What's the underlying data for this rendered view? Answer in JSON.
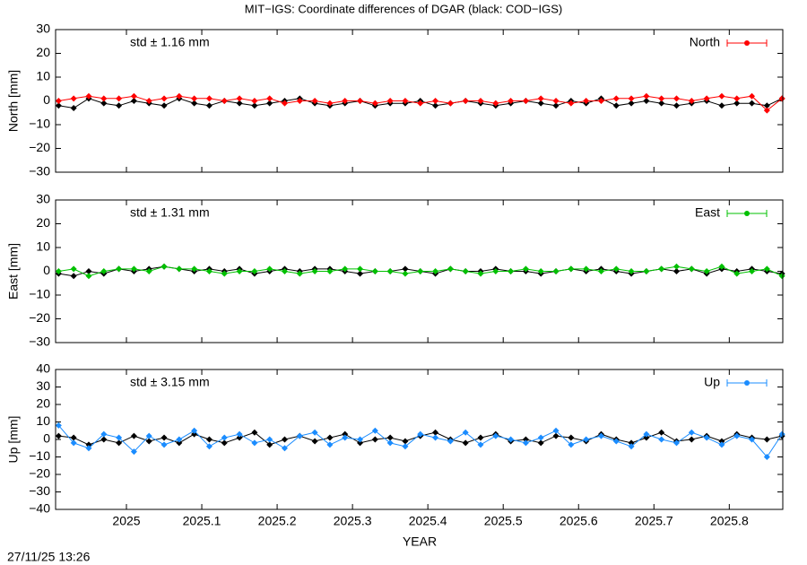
{
  "chart_data": [
    {
      "type": "line",
      "title": "MIT−IGS: Coordinate differences of DGAR (black: COD−IGS)",
      "ylabel": "North [mm]",
      "annotation": "std ± 1.16 mm",
      "legend": "top-right",
      "x": [
        2024.91,
        2024.93,
        2024.95,
        2024.97,
        2024.99,
        2025.01,
        2025.03,
        2025.05,
        2025.07,
        2025.09,
        2025.11,
        2025.13,
        2025.15,
        2025.17,
        2025.19,
        2025.21,
        2025.23,
        2025.25,
        2025.27,
        2025.29,
        2025.31,
        2025.33,
        2025.35,
        2025.37,
        2025.39,
        2025.41,
        2025.43,
        2025.45,
        2025.47,
        2025.49,
        2025.51,
        2025.53,
        2025.55,
        2025.57,
        2025.59,
        2025.61,
        2025.63,
        2025.65,
        2025.67,
        2025.69,
        2025.71,
        2025.73,
        2025.75,
        2025.77,
        2025.79,
        2025.81,
        2025.83,
        2025.85,
        2025.87
      ],
      "xlim": [
        2024.906,
        2025.871
      ],
      "xticks": [
        2025,
        2025.1,
        2025.2,
        2025.3,
        2025.4,
        2025.5,
        2025.6,
        2025.7,
        2025.8
      ],
      "ylim": [
        -30,
        30
      ],
      "yticks": [
        {
          "value": -30,
          "label": "−30"
        },
        {
          "value": -20,
          "label": "−20"
        },
        {
          "value": -10,
          "label": "−10"
        },
        0,
        10,
        20,
        30
      ],
      "series": [
        {
          "color": "#000000",
          "values": [
            -2,
            -3,
            1,
            -1,
            -2,
            0,
            -1,
            -2,
            1,
            -1,
            -2,
            0,
            -1,
            -2,
            -1,
            0,
            1,
            -1,
            -2,
            -1,
            0,
            -2,
            -1,
            -1,
            0,
            -2,
            -1,
            0,
            -1,
            -2,
            -1,
            0,
            -1,
            -2,
            0,
            -1,
            1,
            -2,
            -1,
            0,
            -1,
            -2,
            -1,
            0,
            -2,
            -1,
            -1,
            -2,
            1
          ]
        },
        {
          "name": "North",
          "color": "#ff0000",
          "values": [
            0,
            1,
            2,
            1,
            1,
            2,
            0,
            1,
            2,
            1,
            1,
            0,
            1,
            0,
            1,
            -1,
            0,
            0,
            -1,
            0,
            0,
            -1,
            0,
            0,
            -1,
            0,
            -1,
            0,
            0,
            -1,
            0,
            0,
            1,
            0,
            -1,
            0,
            0,
            1,
            1,
            2,
            1,
            1,
            0,
            1,
            2,
            1,
            2,
            -4,
            1
          ]
        }
      ]
    },
    {
      "type": "line",
      "ylabel": "East [mm]",
      "annotation": "std ± 1.31 mm",
      "legend": "top-right",
      "x": [
        2024.91,
        2024.93,
        2024.95,
        2024.97,
        2024.99,
        2025.01,
        2025.03,
        2025.05,
        2025.07,
        2025.09,
        2025.11,
        2025.13,
        2025.15,
        2025.17,
        2025.19,
        2025.21,
        2025.23,
        2025.25,
        2025.27,
        2025.29,
        2025.31,
        2025.33,
        2025.35,
        2025.37,
        2025.39,
        2025.41,
        2025.43,
        2025.45,
        2025.47,
        2025.49,
        2025.51,
        2025.53,
        2025.55,
        2025.57,
        2025.59,
        2025.61,
        2025.63,
        2025.65,
        2025.67,
        2025.69,
        2025.71,
        2025.73,
        2025.75,
        2025.77,
        2025.79,
        2025.81,
        2025.83,
        2025.85,
        2025.87
      ],
      "xlim": [
        2024.906,
        2025.871
      ],
      "xticks": [
        2025,
        2025.1,
        2025.2,
        2025.3,
        2025.4,
        2025.5,
        2025.6,
        2025.7,
        2025.8
      ],
      "ylim": [
        -30,
        30
      ],
      "yticks": [
        {
          "value": -30,
          "label": "−30"
        },
        {
          "value": -20,
          "label": "−20"
        },
        {
          "value": -10,
          "label": "−10"
        },
        0,
        10,
        20,
        30
      ],
      "series": [
        {
          "color": "#000000",
          "values": [
            -1,
            -2,
            0,
            -1,
            1,
            0,
            1,
            2,
            1,
            0,
            1,
            0,
            1,
            -1,
            0,
            1,
            0,
            1,
            1,
            0,
            -1,
            0,
            0,
            1,
            0,
            -1,
            1,
            0,
            0,
            1,
            0,
            0,
            -1,
            0,
            1,
            0,
            1,
            0,
            -1,
            0,
            1,
            0,
            1,
            -1,
            1,
            0,
            1,
            0,
            -1
          ]
        },
        {
          "name": "East",
          "color": "#00c000",
          "values": [
            0,
            1,
            -2,
            0,
            1,
            1,
            0,
            2,
            1,
            1,
            0,
            -1,
            0,
            0,
            1,
            0,
            -1,
            0,
            0,
            1,
            1,
            0,
            0,
            -1,
            0,
            0,
            1,
            0,
            -1,
            0,
            0,
            1,
            0,
            0,
            1,
            1,
            0,
            1,
            0,
            0,
            1,
            2,
            1,
            0,
            2,
            -1,
            0,
            1,
            -2
          ]
        }
      ]
    },
    {
      "type": "line",
      "ylabel": "Up [mm]",
      "xlabel": "YEAR",
      "annotation": "std ± 3.15 mm",
      "legend": "top-right",
      "footer": "27/11/25 13:26",
      "x": [
        2024.91,
        2024.93,
        2024.95,
        2024.97,
        2024.99,
        2025.01,
        2025.03,
        2025.05,
        2025.07,
        2025.09,
        2025.11,
        2025.13,
        2025.15,
        2025.17,
        2025.19,
        2025.21,
        2025.23,
        2025.25,
        2025.27,
        2025.29,
        2025.31,
        2025.33,
        2025.35,
        2025.37,
        2025.39,
        2025.41,
        2025.43,
        2025.45,
        2025.47,
        2025.49,
        2025.51,
        2025.53,
        2025.55,
        2025.57,
        2025.59,
        2025.61,
        2025.63,
        2025.65,
        2025.67,
        2025.69,
        2025.71,
        2025.73,
        2025.75,
        2025.77,
        2025.79,
        2025.81,
        2025.83,
        2025.85,
        2025.87
      ],
      "xlim": [
        2024.906,
        2025.871
      ],
      "xticks": [
        2025,
        2025.1,
        2025.2,
        2025.3,
        2025.4,
        2025.5,
        2025.6,
        2025.7,
        2025.8
      ],
      "ylim": [
        -40,
        40
      ],
      "yticks": [
        {
          "value": -40,
          "label": "−40"
        },
        {
          "value": -30,
          "label": "−30"
        },
        {
          "value": -20,
          "label": "−20"
        },
        {
          "value": -10,
          "label": "−10"
        },
        0,
        10,
        20,
        30,
        40
      ],
      "series": [
        {
          "color": "#000000",
          "values": [
            2,
            1,
            -3,
            0,
            -2,
            2,
            -1,
            1,
            -2,
            3,
            0,
            -2,
            1,
            4,
            -3,
            0,
            2,
            -1,
            1,
            3,
            -2,
            0,
            1,
            -1,
            2,
            4,
            0,
            -2,
            1,
            3,
            -1,
            0,
            -2,
            2,
            1,
            -1,
            3,
            0,
            -2,
            1,
            4,
            -1,
            0,
            2,
            -1,
            3,
            1,
            0,
            2
          ]
        },
        {
          "name": "Up",
          "color": "#1a8cff",
          "values": [
            8,
            -2,
            -5,
            3,
            1,
            -7,
            2,
            -3,
            0,
            5,
            -4,
            1,
            3,
            -2,
            0,
            -5,
            2,
            4,
            -3,
            1,
            0,
            5,
            -2,
            -4,
            3,
            1,
            -1,
            4,
            -3,
            2,
            0,
            -2,
            1,
            5,
            -3,
            0,
            2,
            -1,
            -4,
            3,
            0,
            -2,
            4,
            1,
            -3,
            2,
            0,
            -10,
            3
          ]
        }
      ]
    }
  ]
}
